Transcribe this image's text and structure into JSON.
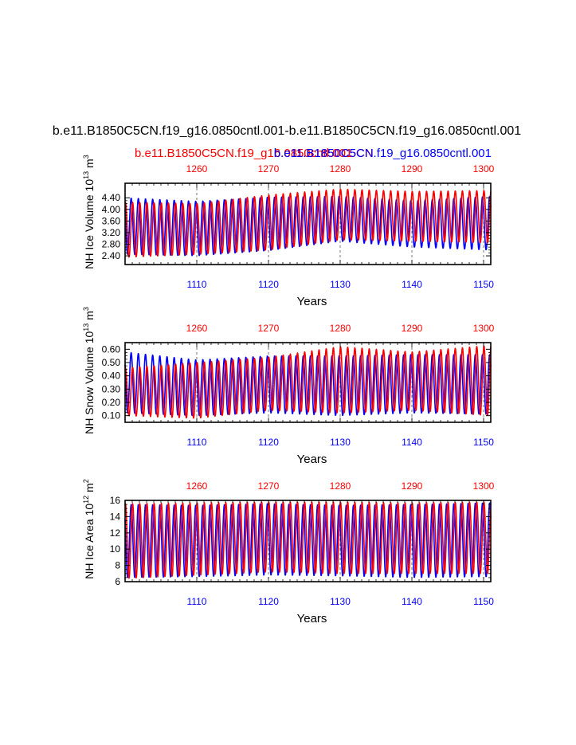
{
  "main_title": "b.e11.B1850C5CN.f19_g16.0850cntl.001-b.e11.B1850C5CN.f19_g16.0850cntl.001",
  "legend": {
    "case1": "b.e11.B1850C5CN.f19_g16.0850cntl.001",
    "case2": "b.e11.B1850C5CN.f19_g16.0850cntl.001",
    "overlap_text": "b.e11.B1850C5CN"
  },
  "colors": {
    "case1": "#ff0000",
    "case2": "#0000ff",
    "axis": "#000000",
    "grid": "#555555"
  },
  "chart_data": [
    {
      "type": "line",
      "name": "nh-ice-volume",
      "ylabel": "NH Ice Volume",
      "yunits_base": "10",
      "yunits_exp": "13",
      "yunits_unit": "m",
      "yunits_unit_exp": "3",
      "xlabel": "Years",
      "xlim_bottom": [
        1100,
        1151
      ],
      "xlim_top": [
        1250,
        1301
      ],
      "ylim": [
        2.1,
        4.9
      ],
      "yticks": [
        2.4,
        2.8,
        3.2,
        3.6,
        4.0,
        4.4
      ],
      "ytick_labels": [
        "2.40",
        "2.80",
        "3.20",
        "3.60",
        "4.00",
        "4.40"
      ],
      "xticks_bottom": [
        1110,
        1120,
        1130,
        1140,
        1150
      ],
      "xticks_top": [
        1260,
        1270,
        1280,
        1290,
        1300
      ],
      "series": [
        {
          "name": "case2",
          "color": "#0000ff",
          "x": [
            1100,
            1110,
            1120,
            1130,
            1140,
            1151
          ],
          "annual_max": [
            4.4,
            4.28,
            4.42,
            4.45,
            4.3,
            4.45
          ],
          "annual_min": [
            2.45,
            2.4,
            2.58,
            2.9,
            2.7,
            2.6
          ]
        },
        {
          "name": "case1",
          "color": "#ff0000",
          "x": [
            1100,
            1110,
            1120,
            1130,
            1140,
            1151
          ],
          "annual_max": [
            4.25,
            4.2,
            4.5,
            4.7,
            4.62,
            4.65
          ],
          "annual_min": [
            2.35,
            2.45,
            2.6,
            2.95,
            2.9,
            2.85
          ]
        }
      ]
    },
    {
      "type": "line",
      "name": "nh-snow-volume",
      "ylabel": "NH Snow Volume",
      "yunits_base": "10",
      "yunits_exp": "13",
      "yunits_unit": "m",
      "yunits_unit_exp": "3",
      "xlabel": "Years",
      "xlim_bottom": [
        1100,
        1151
      ],
      "xlim_top": [
        1250,
        1301
      ],
      "ylim": [
        0.05,
        0.65
      ],
      "yticks": [
        0.1,
        0.2,
        0.3,
        0.4,
        0.5,
        0.6
      ],
      "ytick_labels": [
        "0.10",
        "0.20",
        "0.30",
        "0.40",
        "0.50",
        "0.60"
      ],
      "xticks_bottom": [
        1110,
        1120,
        1130,
        1140,
        1150
      ],
      "xticks_top": [
        1260,
        1270,
        1280,
        1290,
        1300
      ],
      "series": [
        {
          "name": "case2",
          "color": "#0000ff",
          "x": [
            1100,
            1110,
            1120,
            1130,
            1140,
            1151
          ],
          "annual_max": [
            0.58,
            0.52,
            0.55,
            0.55,
            0.56,
            0.56
          ],
          "annual_min": [
            0.12,
            0.1,
            0.12,
            0.1,
            0.12,
            0.11
          ]
        },
        {
          "name": "case1",
          "color": "#ff0000",
          "x": [
            1100,
            1110,
            1120,
            1130,
            1140,
            1151
          ],
          "annual_max": [
            0.46,
            0.5,
            0.54,
            0.62,
            0.58,
            0.63
          ],
          "annual_min": [
            0.1,
            0.08,
            0.14,
            0.12,
            0.14,
            0.1
          ]
        }
      ]
    },
    {
      "type": "line",
      "name": "nh-ice-area",
      "ylabel": "NH Ice Area",
      "yunits_base": "10",
      "yunits_exp": "12",
      "yunits_unit": "m",
      "yunits_unit_exp": "2",
      "xlabel": "Years",
      "xlim_bottom": [
        1100,
        1151
      ],
      "xlim_top": [
        1250,
        1301
      ],
      "ylim": [
        6,
        16
      ],
      "yticks": [
        6,
        8,
        10,
        12,
        14,
        16
      ],
      "ytick_labels": [
        "6",
        "8",
        "10",
        "12",
        "14",
        "16"
      ],
      "xticks_bottom": [
        1110,
        1120,
        1130,
        1140,
        1150
      ],
      "xticks_top": [
        1260,
        1270,
        1280,
        1290,
        1300
      ],
      "series": [
        {
          "name": "case2",
          "color": "#0000ff",
          "x": [
            1100,
            1110,
            1120,
            1130,
            1140,
            1151
          ],
          "annual_max": [
            15.5,
            15.4,
            15.6,
            15.4,
            15.5,
            15.7
          ],
          "annual_min": [
            6.5,
            6.6,
            6.8,
            6.7,
            6.5,
            6.6
          ]
        },
        {
          "name": "case1",
          "color": "#ff0000",
          "x": [
            1100,
            1110,
            1120,
            1130,
            1140,
            1151
          ],
          "annual_max": [
            15.6,
            15.7,
            15.8,
            15.8,
            15.7,
            15.8
          ],
          "annual_min": [
            6.4,
            6.8,
            7.2,
            7.0,
            7.0,
            7.0
          ]
        }
      ]
    }
  ]
}
